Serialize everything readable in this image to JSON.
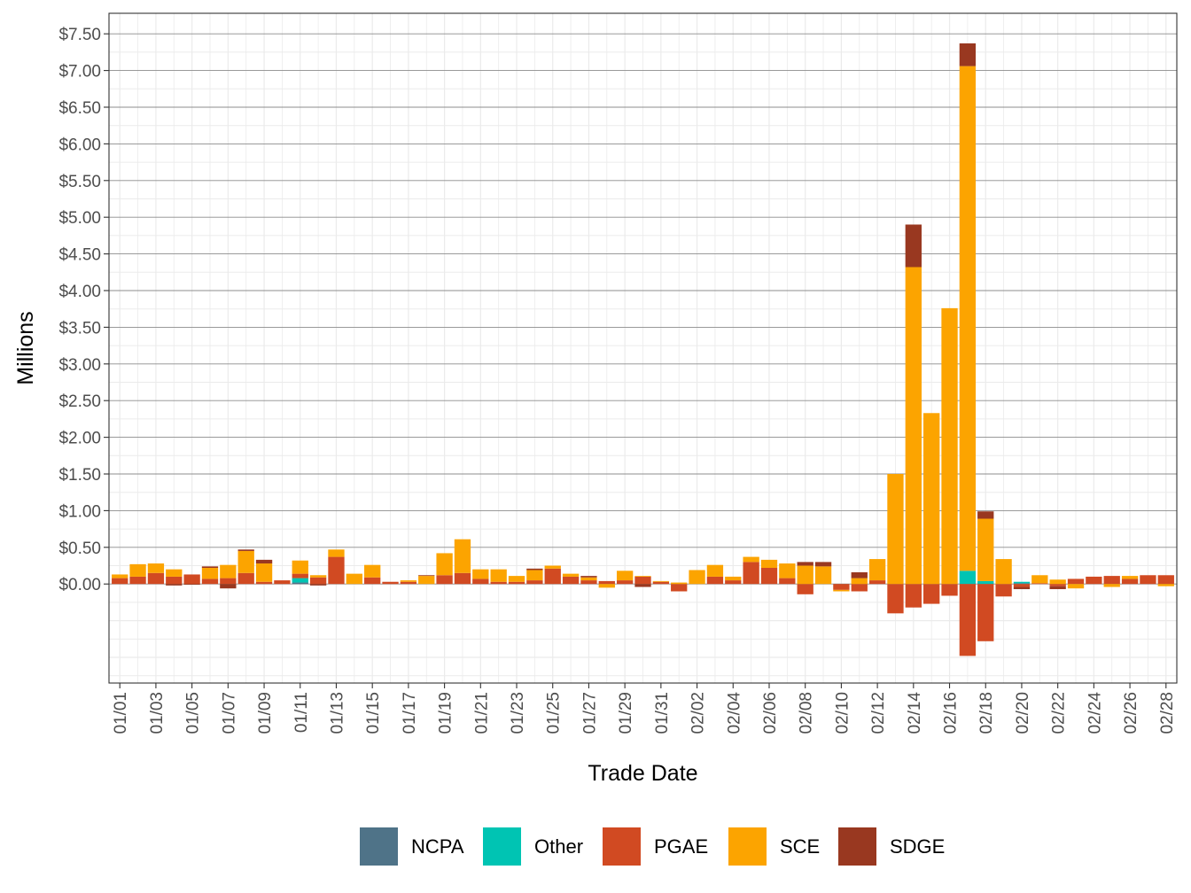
{
  "chart_data": {
    "type": "bar",
    "stacked": true,
    "xlabel": "Trade Date",
    "ylabel": "Millions",
    "ylim": [
      -1.35,
      7.78
    ],
    "y_ticks": [
      0,
      0.5,
      1,
      1.5,
      2,
      2.5,
      3,
      3.5,
      4,
      4.5,
      5,
      5.5,
      6,
      6.5,
      7,
      7.5
    ],
    "y_tick_labels": [
      "$0.00",
      "$0.50",
      "$1.00",
      "$1.50",
      "$2.00",
      "$2.50",
      "$3.00",
      "$3.50",
      "$4.00",
      "$4.50",
      "$5.00",
      "$5.50",
      "$6.00",
      "$6.50",
      "$7.00",
      "$7.50"
    ],
    "grid": true,
    "legend_position": "bottom",
    "categories": [
      "01/01",
      "01/02",
      "01/03",
      "01/04",
      "01/05",
      "01/06",
      "01/07",
      "01/08",
      "01/09",
      "01/10",
      "01/11",
      "01/12",
      "01/13",
      "01/14",
      "01/15",
      "01/16",
      "01/17",
      "01/18",
      "01/19",
      "01/20",
      "01/21",
      "01/22",
      "01/23",
      "01/24",
      "01/25",
      "01/26",
      "01/27",
      "01/28",
      "01/29",
      "01/30",
      "01/31",
      "02/01",
      "02/02",
      "02/03",
      "02/04",
      "02/05",
      "02/06",
      "02/07",
      "02/08",
      "02/09",
      "02/10",
      "02/11",
      "02/12",
      "02/13",
      "02/14",
      "02/15",
      "02/16",
      "02/17",
      "02/18",
      "02/19",
      "02/20",
      "02/21",
      "02/22",
      "02/23",
      "02/24",
      "02/25",
      "02/26",
      "02/27",
      "02/28"
    ],
    "x_tick_labels": [
      "01/01",
      "01/03",
      "01/05",
      "01/07",
      "01/09",
      "01/11",
      "01/13",
      "01/15",
      "01/17",
      "01/19",
      "01/21",
      "01/23",
      "01/25",
      "01/27",
      "01/29",
      "01/31",
      "02/02",
      "02/04",
      "02/06",
      "02/08",
      "02/10",
      "02/12",
      "02/14",
      "02/16",
      "02/18",
      "02/20",
      "02/22",
      "02/24",
      "02/26",
      "02/28"
    ],
    "series": [
      {
        "name": "NCPA",
        "color": "#4f7388",
        "values": [
          0,
          0,
          0,
          0,
          0,
          0,
          0,
          0,
          0,
          0,
          0.02,
          0,
          0,
          0,
          0,
          0,
          0,
          0,
          0,
          0,
          0,
          0,
          0,
          0,
          0,
          0,
          0,
          0,
          0,
          0,
          0,
          0,
          0,
          0,
          0,
          0,
          0,
          0,
          0,
          0,
          0,
          0,
          0,
          0,
          0,
          0,
          0,
          0,
          0,
          0,
          0.01,
          0,
          0,
          0,
          0,
          0,
          0,
          0,
          0
        ]
      },
      {
        "name": "Other",
        "color": "#00c4b3",
        "values": [
          0,
          0,
          0,
          0,
          0,
          0,
          0,
          0,
          0,
          0,
          0.06,
          0,
          0,
          0,
          0,
          0,
          0,
          0,
          0,
          0,
          0,
          0,
          0,
          0,
          0,
          0,
          0,
          0,
          0,
          0,
          0,
          0,
          0,
          0,
          0,
          0,
          0,
          0,
          0,
          0,
          0,
          0,
          0,
          0,
          0,
          0,
          0,
          0.18,
          0.04,
          0,
          0.02,
          0,
          0,
          0,
          0,
          0,
          0,
          0,
          0
        ]
      },
      {
        "name": "PGAE",
        "color": "#d14a22",
        "values": [
          0.08,
          0.1,
          0.15,
          0.1,
          0.13,
          0.07,
          0.08,
          0.15,
          0.03,
          0.05,
          0.06,
          0.09,
          0.37,
          0,
          0.09,
          0.03,
          0.03,
          0,
          0.12,
          0.15,
          0.07,
          0.03,
          0.03,
          0.05,
          0.21,
          0.1,
          0.05,
          0.04,
          0.05,
          0.1,
          0.03,
          -0.1,
          0,
          0.1,
          0.05,
          0.3,
          0.22,
          0.08,
          -0.14,
          0,
          -0.08,
          -0.1,
          0.05,
          -0.4,
          -0.32,
          -0.27,
          -0.16,
          -0.98,
          -0.78,
          -0.17,
          -0.04,
          0.01,
          -0.03,
          0.07,
          0.1,
          0.11,
          0.07,
          0.12,
          0.12
        ]
      },
      {
        "name": "SCE",
        "color": "#fca400",
        "values": [
          0.05,
          0.17,
          0.13,
          0.1,
          0,
          0.15,
          0.18,
          0.3,
          0.25,
          0,
          0.18,
          0.03,
          0.1,
          0.14,
          0.17,
          0,
          0.02,
          0.11,
          0.3,
          0.46,
          0.13,
          0.17,
          0.08,
          0.14,
          0.04,
          0.04,
          0.04,
          -0.05,
          0.13,
          0.01,
          0.01,
          0.02,
          0.19,
          0.16,
          0.05,
          0.07,
          0.11,
          0.2,
          0.25,
          0.24,
          -0.02,
          0.08,
          0.29,
          1.5,
          4.32,
          2.33,
          3.76,
          6.88,
          0.85,
          0.34,
          0,
          0.11,
          0.06,
          -0.06,
          0,
          -0.04,
          0.04,
          0,
          -0.03
        ]
      },
      {
        "name": "SDGE",
        "color": "#993820",
        "values": [
          0,
          0,
          0,
          -0.02,
          -0.01,
          0.02,
          -0.06,
          0.02,
          0.05,
          0,
          0,
          -0.02,
          0,
          0,
          0,
          0,
          0,
          0.01,
          0,
          0,
          0,
          0,
          0,
          0.02,
          0,
          0,
          0.02,
          0,
          0,
          -0.04,
          0,
          0,
          0,
          0,
          0,
          0,
          0,
          0,
          0.05,
          0.06,
          0,
          0.08,
          0,
          0,
          0.58,
          0,
          0,
          0.31,
          0.1,
          0,
          -0.03,
          0,
          -0.04,
          0,
          0,
          0,
          0,
          0,
          0
        ]
      }
    ]
  }
}
